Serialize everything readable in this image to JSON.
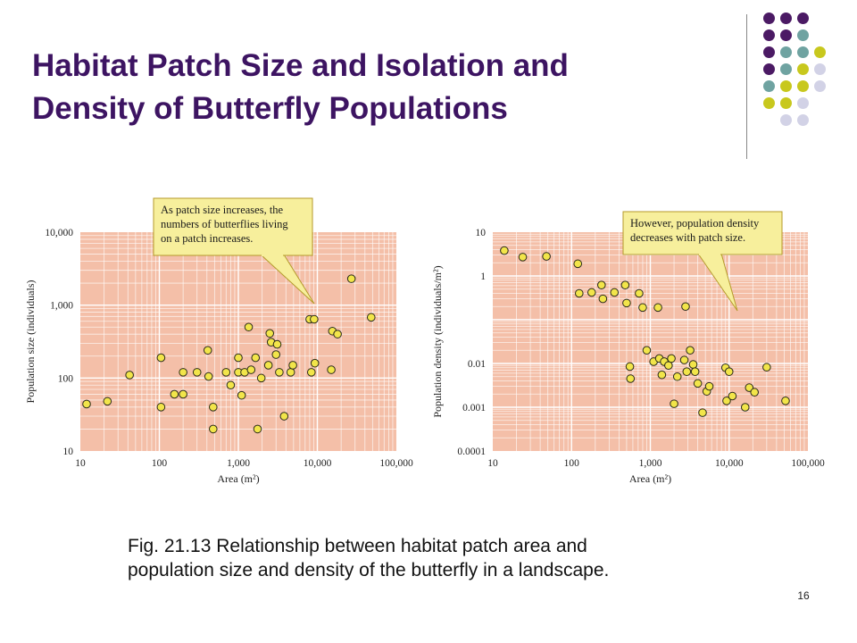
{
  "slide": {
    "title_lines": [
      "Habitat Patch Size and Isolation and",
      "Density of Butterfly Populations"
    ],
    "caption_lines": [
      "Fig. 21.13 Relationship between habitat patch area and",
      "population size and density of the butterfly in a landscape."
    ],
    "page_number": "16",
    "decoration_colors": {
      "purple": "#4b1a64",
      "teal": "#6fa3a1",
      "yellow": "#c8c81e",
      "lavender": "#d2d2e6"
    }
  },
  "chart_data": [
    {
      "type": "scatter",
      "x_scale": "log",
      "y_scale": "log",
      "xlim": [
        10,
        100000
      ],
      "ylim": [
        10,
        10000
      ],
      "xlabel": "Area (m²)",
      "ylabel": "Population size (individuals)",
      "x_tick_labels": [
        "10",
        "100",
        "1,000",
        "10,000",
        "100,000"
      ],
      "y_tick_labels": [
        "10",
        "100",
        "1,000",
        "10,000"
      ],
      "grid": true,
      "plot_background": "#f4bfa8",
      "point_color": "#f2e54a",
      "annotation": [
        "As patch size increases, the",
        "numbers of butterflies living",
        "on a patch increases."
      ],
      "points": [
        {
          "x": 12,
          "y": 44
        },
        {
          "x": 22,
          "y": 48
        },
        {
          "x": 42,
          "y": 110
        },
        {
          "x": 105,
          "y": 40
        },
        {
          "x": 105,
          "y": 190
        },
        {
          "x": 155,
          "y": 60
        },
        {
          "x": 200,
          "y": 60
        },
        {
          "x": 200,
          "y": 120
        },
        {
          "x": 300,
          "y": 120
        },
        {
          "x": 410,
          "y": 240
        },
        {
          "x": 420,
          "y": 105
        },
        {
          "x": 480,
          "y": 40
        },
        {
          "x": 480,
          "y": 20
        },
        {
          "x": 700,
          "y": 120
        },
        {
          "x": 800,
          "y": 80
        },
        {
          "x": 1000,
          "y": 120
        },
        {
          "x": 1000,
          "y": 190
        },
        {
          "x": 1100,
          "y": 58
        },
        {
          "x": 1200,
          "y": 120
        },
        {
          "x": 1350,
          "y": 500
        },
        {
          "x": 1450,
          "y": 130
        },
        {
          "x": 1650,
          "y": 190
        },
        {
          "x": 1750,
          "y": 20
        },
        {
          "x": 1950,
          "y": 100
        },
        {
          "x": 2400,
          "y": 150
        },
        {
          "x": 2500,
          "y": 410
        },
        {
          "x": 2600,
          "y": 310
        },
        {
          "x": 3000,
          "y": 210
        },
        {
          "x": 3100,
          "y": 290
        },
        {
          "x": 3300,
          "y": 120
        },
        {
          "x": 3800,
          "y": 30
        },
        {
          "x": 4600,
          "y": 120
        },
        {
          "x": 4900,
          "y": 150
        },
        {
          "x": 8000,
          "y": 640
        },
        {
          "x": 8400,
          "y": 120
        },
        {
          "x": 9100,
          "y": 640
        },
        {
          "x": 9300,
          "y": 160
        },
        {
          "x": 15000,
          "y": 130
        },
        {
          "x": 15500,
          "y": 440
        },
        {
          "x": 18000,
          "y": 400
        },
        {
          "x": 27000,
          "y": 2300
        },
        {
          "x": 48000,
          "y": 680
        }
      ]
    },
    {
      "type": "scatter",
      "x_scale": "log",
      "y_scale": "log",
      "xlim": [
        10,
        100000
      ],
      "ylim": [
        0.0001,
        10
      ],
      "xlabel": "Area (m²)",
      "ylabel": "Population density (individuals/m²)",
      "x_tick_labels": [
        "10",
        "100",
        "1,000",
        "10,000",
        "100,000"
      ],
      "y_tick_labels": [
        "0.0001",
        "0.001",
        "0.01",
        "1",
        "10"
      ],
      "grid": true,
      "plot_background": "#f4bfa8",
      "point_color": "#f2e54a",
      "annotation": [
        "However, population density",
        "decreases with patch size."
      ],
      "points": [
        {
          "x": 14,
          "y": 3.8
        },
        {
          "x": 24,
          "y": 2.7
        },
        {
          "x": 48,
          "y": 2.8
        },
        {
          "x": 120,
          "y": 1.9
        },
        {
          "x": 125,
          "y": 0.4
        },
        {
          "x": 180,
          "y": 0.42
        },
        {
          "x": 240,
          "y": 0.62
        },
        {
          "x": 250,
          "y": 0.3
        },
        {
          "x": 350,
          "y": 0.42
        },
        {
          "x": 480,
          "y": 0.62
        },
        {
          "x": 500,
          "y": 0.24
        },
        {
          "x": 550,
          "y": 0.0085
        },
        {
          "x": 560,
          "y": 0.0045
        },
        {
          "x": 720,
          "y": 0.4
        },
        {
          "x": 800,
          "y": 0.19
        },
        {
          "x": 900,
          "y": 0.02
        },
        {
          "x": 1100,
          "y": 0.011
        },
        {
          "x": 1250,
          "y": 0.19
        },
        {
          "x": 1300,
          "y": 0.013
        },
        {
          "x": 1400,
          "y": 0.0055
        },
        {
          "x": 1500,
          "y": 0.011
        },
        {
          "x": 1700,
          "y": 0.009
        },
        {
          "x": 1850,
          "y": 0.013
        },
        {
          "x": 2000,
          "y": 0.0012
        },
        {
          "x": 2200,
          "y": 0.005
        },
        {
          "x": 2700,
          "y": 0.012
        },
        {
          "x": 2800,
          "y": 0.2
        },
        {
          "x": 2900,
          "y": 0.0065
        },
        {
          "x": 3200,
          "y": 0.02
        },
        {
          "x": 3500,
          "y": 0.0095
        },
        {
          "x": 3700,
          "y": 0.0065
        },
        {
          "x": 4000,
          "y": 0.0035
        },
        {
          "x": 4600,
          "y": 0.00075
        },
        {
          "x": 5200,
          "y": 0.0023
        },
        {
          "x": 5600,
          "y": 0.003
        },
        {
          "x": 9000,
          "y": 0.008
        },
        {
          "x": 9300,
          "y": 0.0014
        },
        {
          "x": 10000,
          "y": 0.0065
        },
        {
          "x": 11000,
          "y": 0.0018
        },
        {
          "x": 16000,
          "y": 0.001
        },
        {
          "x": 18000,
          "y": 0.0028
        },
        {
          "x": 21000,
          "y": 0.0022
        },
        {
          "x": 30000,
          "y": 0.0082
        },
        {
          "x": 52000,
          "y": 0.0014
        }
      ]
    }
  ]
}
